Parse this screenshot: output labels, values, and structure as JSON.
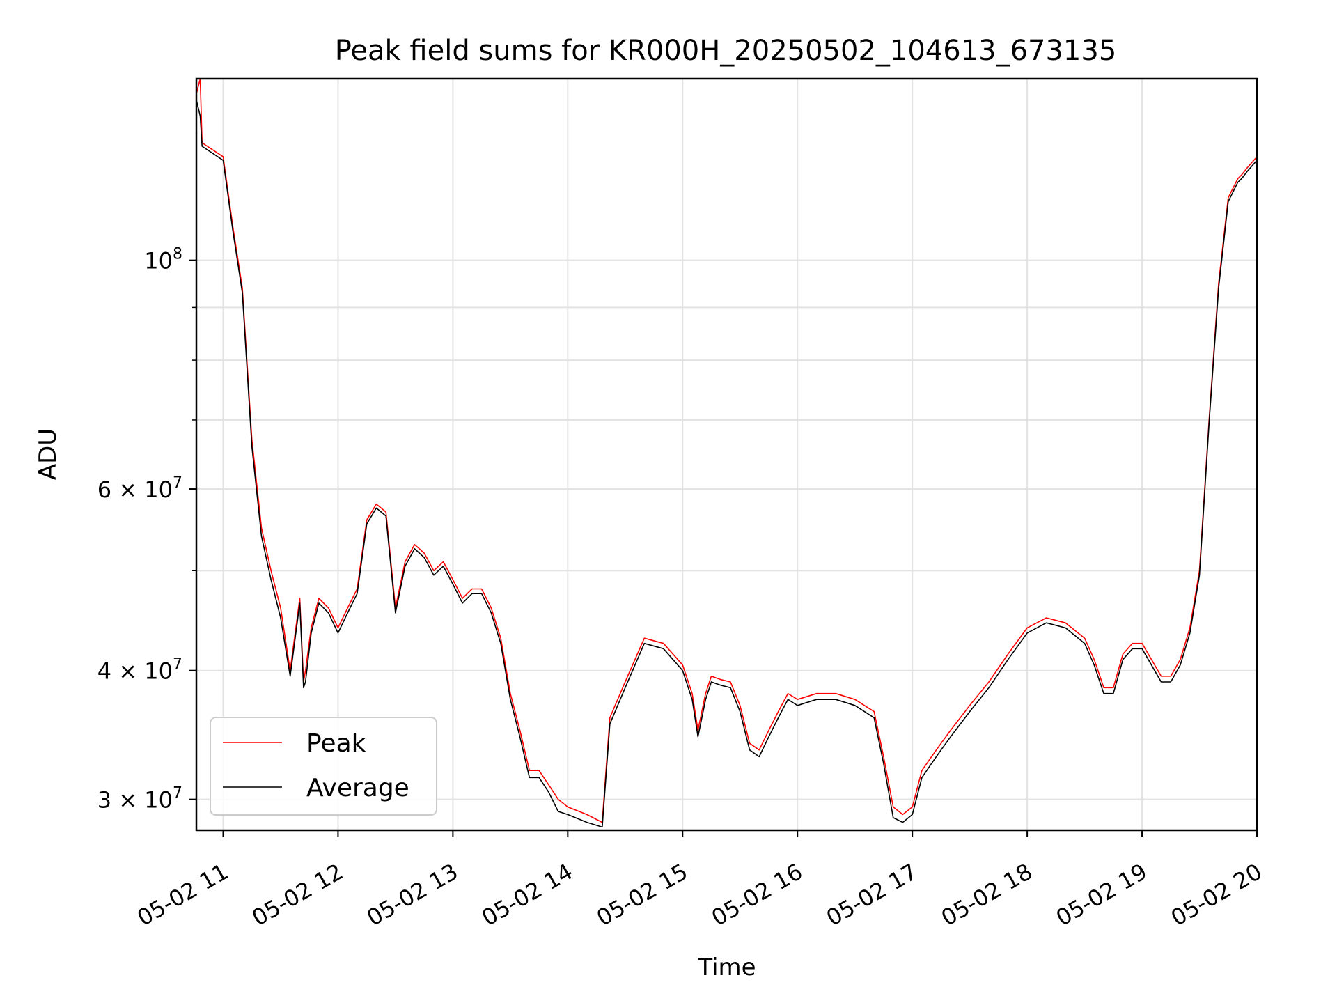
{
  "chart_data": {
    "type": "line",
    "title": "Peak field sums for KR000H_20250502_104613_673135",
    "xlabel": "Time",
    "ylabel": "ADU",
    "yscale": "log",
    "grid": true,
    "legend_position": "lower-left",
    "xlim": [
      "2025-05-02T10:46",
      "2025-05-02T20:00"
    ],
    "ylim": [
      28000000,
      150000000
    ],
    "x_ticks": [
      {
        "t": "2025-05-02T11:00",
        "label": "05-02 11"
      },
      {
        "t": "2025-05-02T12:00",
        "label": "05-02 12"
      },
      {
        "t": "2025-05-02T13:00",
        "label": "05-02 13"
      },
      {
        "t": "2025-05-02T14:00",
        "label": "05-02 14"
      },
      {
        "t": "2025-05-02T15:00",
        "label": "05-02 15"
      },
      {
        "t": "2025-05-02T16:00",
        "label": "05-02 16"
      },
      {
        "t": "2025-05-02T17:00",
        "label": "05-02 17"
      },
      {
        "t": "2025-05-02T18:00",
        "label": "05-02 18"
      },
      {
        "t": "2025-05-02T19:00",
        "label": "05-02 19"
      },
      {
        "t": "2025-05-02T20:00",
        "label": "05-02 20"
      }
    ],
    "y_major_ticks": [
      {
        "v": 30000000,
        "mant": "3",
        "exp": "7"
      },
      {
        "v": 40000000,
        "mant": "4",
        "exp": "7"
      },
      {
        "v": 60000000,
        "mant": "6",
        "exp": "7"
      },
      {
        "v": 100000000,
        "mant": "",
        "exp": "8"
      }
    ],
    "y_minor_ticks": [
      50000000,
      70000000,
      80000000,
      90000000
    ],
    "series": [
      {
        "name": "Peak",
        "color": "#ff0000",
        "x": [
          "2025-05-02T10:46",
          "2025-05-02T10:48",
          "2025-05-02T10:49",
          "2025-05-02T11:00",
          "2025-05-02T11:05",
          "2025-05-02T11:10",
          "2025-05-02T11:15",
          "2025-05-02T11:20",
          "2025-05-02T11:25",
          "2025-05-02T11:30",
          "2025-05-02T11:35",
          "2025-05-02T11:40",
          "2025-05-02T11:42",
          "2025-05-02T11:43",
          "2025-05-02T11:46",
          "2025-05-02T11:50",
          "2025-05-02T11:55",
          "2025-05-02T12:00",
          "2025-05-02T12:05",
          "2025-05-02T12:10",
          "2025-05-02T12:15",
          "2025-05-02T12:20",
          "2025-05-02T12:25",
          "2025-05-02T12:30",
          "2025-05-02T12:35",
          "2025-05-02T12:40",
          "2025-05-02T12:45",
          "2025-05-02T12:50",
          "2025-05-02T12:55",
          "2025-05-02T13:00",
          "2025-05-02T13:05",
          "2025-05-02T13:10",
          "2025-05-02T13:15",
          "2025-05-02T13:20",
          "2025-05-02T13:25",
          "2025-05-02T13:30",
          "2025-05-02T13:35",
          "2025-05-02T13:40",
          "2025-05-02T13:45",
          "2025-05-02T13:50",
          "2025-05-02T13:55",
          "2025-05-02T14:00",
          "2025-05-02T14:10",
          "2025-05-02T14:18",
          "2025-05-02T14:22",
          "2025-05-02T14:30",
          "2025-05-02T14:40",
          "2025-05-02T14:50",
          "2025-05-02T15:00",
          "2025-05-02T15:05",
          "2025-05-02T15:08",
          "2025-05-02T15:12",
          "2025-05-02T15:15",
          "2025-05-02T15:20",
          "2025-05-02T15:25",
          "2025-05-02T15:30",
          "2025-05-02T15:35",
          "2025-05-02T15:40",
          "2025-05-02T15:45",
          "2025-05-02T15:50",
          "2025-05-02T15:55",
          "2025-05-02T16:00",
          "2025-05-02T16:10",
          "2025-05-02T16:20",
          "2025-05-02T16:30",
          "2025-05-02T16:40",
          "2025-05-02T16:45",
          "2025-05-02T16:50",
          "2025-05-02T16:55",
          "2025-05-02T17:00",
          "2025-05-02T17:05",
          "2025-05-02T17:10",
          "2025-05-02T17:15",
          "2025-05-02T17:20",
          "2025-05-02T17:30",
          "2025-05-02T17:40",
          "2025-05-02T17:50",
          "2025-05-02T18:00",
          "2025-05-02T18:10",
          "2025-05-02T18:20",
          "2025-05-02T18:30",
          "2025-05-02T18:35",
          "2025-05-02T18:40",
          "2025-05-02T18:45",
          "2025-05-02T18:50",
          "2025-05-02T18:55",
          "2025-05-02T19:00",
          "2025-05-02T19:10",
          "2025-05-02T19:15",
          "2025-05-02T19:20",
          "2025-05-02T19:25",
          "2025-05-02T19:30",
          "2025-05-02T19:35",
          "2025-05-02T19:40",
          "2025-05-02T19:45",
          "2025-05-02T19:50",
          "2025-05-02T19:52",
          "2025-05-02T19:55",
          "2025-05-02T20:00"
        ],
        "values": [
          145000000,
          150000000,
          130000000,
          126000000,
          108000000,
          94000000,
          67000000,
          55000000,
          50000000,
          46000000,
          40000000,
          47000000,
          39000000,
          40000000,
          44000000,
          47000000,
          46000000,
          44000000,
          46000000,
          48000000,
          56000000,
          58000000,
          57000000,
          46000000,
          51000000,
          53000000,
          52000000,
          50000000,
          51000000,
          49000000,
          47000000,
          48000000,
          48000000,
          46000000,
          43000000,
          38000000,
          35000000,
          32000000,
          32000000,
          31000000,
          30000000,
          29500000,
          29000000,
          28500000,
          36000000,
          39000000,
          43000000,
          42500000,
          40500000,
          38000000,
          35000000,
          38000000,
          39500000,
          39200000,
          39000000,
          37000000,
          34000000,
          33500000,
          35000000,
          36500000,
          38000000,
          37500000,
          38000000,
          38000000,
          37500000,
          36500000,
          33000000,
          29500000,
          29000000,
          29500000,
          32000000,
          33000000,
          34000000,
          35000000,
          37000000,
          39000000,
          41500000,
          44000000,
          45000000,
          44500000,
          43000000,
          41000000,
          38500000,
          38500000,
          41500000,
          42500000,
          42500000,
          39500000,
          39500000,
          41000000,
          44000000,
          50000000,
          70000000,
          95000000,
          115000000,
          120000000,
          121000000,
          123000000,
          126000000
        ]
      },
      {
        "name": "Average",
        "color": "#000000",
        "x": [
          "2025-05-02T10:46",
          "2025-05-02T10:48",
          "2025-05-02T10:49",
          "2025-05-02T11:00",
          "2025-05-02T11:05",
          "2025-05-02T11:10",
          "2025-05-02T11:15",
          "2025-05-02T11:20",
          "2025-05-02T11:25",
          "2025-05-02T11:30",
          "2025-05-02T11:35",
          "2025-05-02T11:40",
          "2025-05-02T11:42",
          "2025-05-02T11:43",
          "2025-05-02T11:46",
          "2025-05-02T11:50",
          "2025-05-02T11:55",
          "2025-05-02T12:00",
          "2025-05-02T12:05",
          "2025-05-02T12:10",
          "2025-05-02T12:15",
          "2025-05-02T12:20",
          "2025-05-02T12:25",
          "2025-05-02T12:30",
          "2025-05-02T12:35",
          "2025-05-02T12:40",
          "2025-05-02T12:45",
          "2025-05-02T12:50",
          "2025-05-02T12:55",
          "2025-05-02T13:00",
          "2025-05-02T13:05",
          "2025-05-02T13:10",
          "2025-05-02T13:15",
          "2025-05-02T13:20",
          "2025-05-02T13:25",
          "2025-05-02T13:30",
          "2025-05-02T13:35",
          "2025-05-02T13:40",
          "2025-05-02T13:45",
          "2025-05-02T13:50",
          "2025-05-02T13:55",
          "2025-05-02T14:00",
          "2025-05-02T14:10",
          "2025-05-02T14:18",
          "2025-05-02T14:22",
          "2025-05-02T14:30",
          "2025-05-02T14:40",
          "2025-05-02T14:50",
          "2025-05-02T15:00",
          "2025-05-02T15:05",
          "2025-05-02T15:08",
          "2025-05-02T15:12",
          "2025-05-02T15:15",
          "2025-05-02T15:20",
          "2025-05-02T15:25",
          "2025-05-02T15:30",
          "2025-05-02T15:35",
          "2025-05-02T15:40",
          "2025-05-02T15:45",
          "2025-05-02T15:50",
          "2025-05-02T15:55",
          "2025-05-02T16:00",
          "2025-05-02T16:10",
          "2025-05-02T16:20",
          "2025-05-02T16:30",
          "2025-05-02T16:40",
          "2025-05-02T16:45",
          "2025-05-02T16:50",
          "2025-05-02T16:55",
          "2025-05-02T17:00",
          "2025-05-02T17:05",
          "2025-05-02T17:10",
          "2025-05-02T17:15",
          "2025-05-02T17:20",
          "2025-05-02T17:30",
          "2025-05-02T17:40",
          "2025-05-02T17:50",
          "2025-05-02T18:00",
          "2025-05-02T18:10",
          "2025-05-02T18:20",
          "2025-05-02T18:30",
          "2025-05-02T18:35",
          "2025-05-02T18:40",
          "2025-05-02T18:45",
          "2025-05-02T18:50",
          "2025-05-02T18:55",
          "2025-05-02T19:00",
          "2025-05-02T19:10",
          "2025-05-02T19:15",
          "2025-05-02T19:20",
          "2025-05-02T19:25",
          "2025-05-02T19:30",
          "2025-05-02T19:35",
          "2025-05-02T19:40",
          "2025-05-02T19:45",
          "2025-05-02T19:50",
          "2025-05-02T19:52",
          "2025-05-02T19:55",
          "2025-05-02T20:00"
        ],
        "values": [
          143000000,
          138000000,
          129000000,
          125000000,
          107000000,
          93000000,
          66000000,
          54000000,
          49000000,
          45000000,
          39500000,
          46500000,
          38500000,
          39000000,
          43500000,
          46500000,
          45500000,
          43500000,
          45500000,
          47500000,
          55500000,
          57500000,
          56500000,
          45500000,
          50500000,
          52500000,
          51500000,
          49500000,
          50500000,
          48500000,
          46500000,
          47500000,
          47500000,
          45500000,
          42500000,
          37500000,
          34500000,
          31500000,
          31500000,
          30500000,
          29200000,
          29000000,
          28500000,
          28200000,
          35500000,
          38500000,
          42500000,
          42000000,
          40000000,
          37500000,
          34500000,
          37500000,
          39000000,
          38700000,
          38500000,
          36500000,
          33500000,
          33000000,
          34500000,
          36000000,
          37500000,
          37000000,
          37500000,
          37500000,
          37000000,
          36000000,
          32500000,
          28800000,
          28500000,
          29000000,
          31500000,
          32500000,
          33500000,
          34500000,
          36500000,
          38500000,
          41000000,
          43500000,
          44500000,
          44000000,
          42500000,
          40500000,
          38000000,
          38000000,
          41000000,
          42000000,
          42000000,
          39000000,
          39000000,
          40500000,
          43500000,
          49500000,
          69500000,
          94000000,
          114000000,
          119000000,
          120000000,
          122000000,
          125000000
        ]
      }
    ]
  }
}
